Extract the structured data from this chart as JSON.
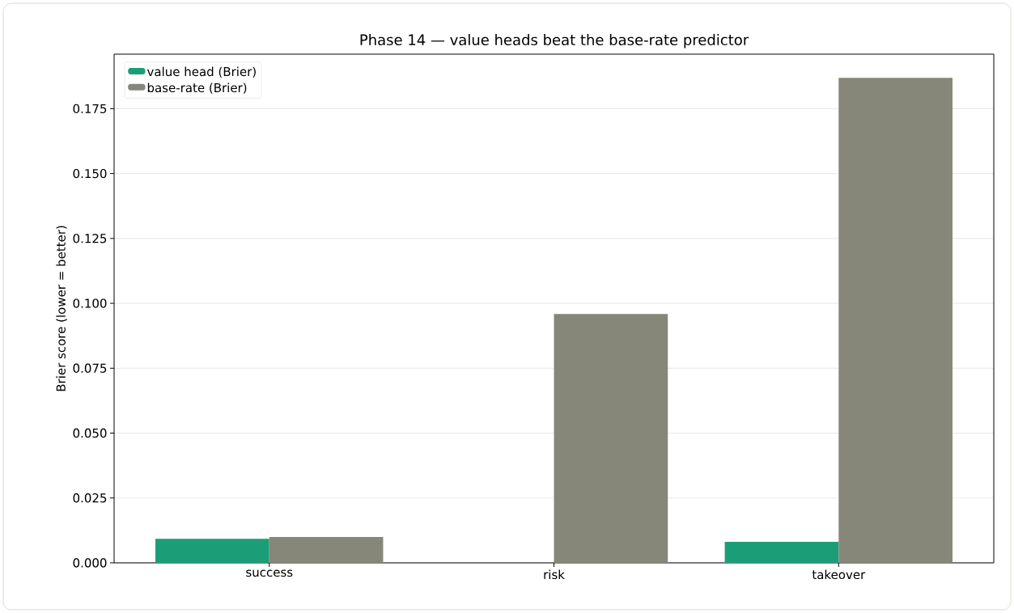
{
  "chart_data": {
    "type": "bar",
    "title": "Phase 14 — value heads beat the base-rate predictor",
    "ylabel": "Brier score (lower = better)",
    "categories": [
      "success",
      "risk",
      "takeover"
    ],
    "series": [
      {
        "name": "value head (Brier)",
        "color": "#1b9e77",
        "values": [
          0.0093,
          0.0,
          0.0081
        ]
      },
      {
        "name": "base-rate (Brier)",
        "color": "#878779",
        "values": [
          0.01,
          0.0959,
          0.1869
        ]
      }
    ],
    "ylim": [
      0,
      0.196
    ],
    "yticks": [
      {
        "value": 0,
        "label": "0.000"
      },
      {
        "value": 0.025,
        "label": "0.025"
      },
      {
        "value": 0.05,
        "label": "0.050"
      },
      {
        "value": 0.075,
        "label": "0.075"
      },
      {
        "value": 0.1,
        "label": "0.100"
      },
      {
        "value": 0.125,
        "label": "0.125"
      },
      {
        "value": 0.15,
        "label": "0.150"
      },
      {
        "value": 0.175,
        "label": "0.175"
      }
    ],
    "grid": "y",
    "legend": "top left"
  }
}
